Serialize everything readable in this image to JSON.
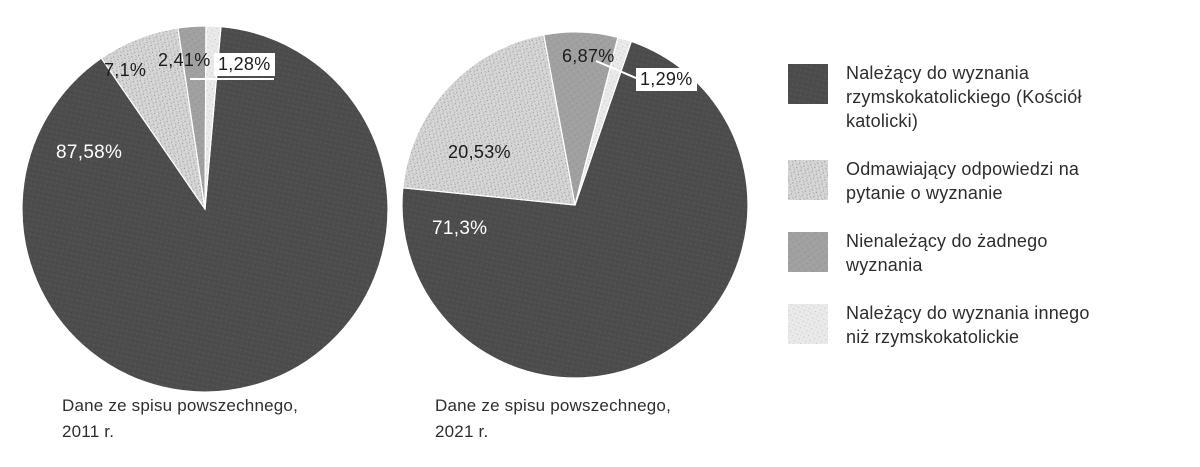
{
  "page": {
    "background": "#ffffff"
  },
  "legend": {
    "position": "right",
    "items": [
      {
        "label": "Należący do wyznania rzymskokatolickiego (Kościół katolicki)",
        "color": "#4d4d4d"
      },
      {
        "label": "Odmawiający odpowiedzi na pytanie o wyznanie",
        "color": "#d6d6d6"
      },
      {
        "label": "Nienależący do żadnego wyznania",
        "color": "#a0a0a0"
      },
      {
        "label": "Należący do wyznania innego niż rzymskokatolickie",
        "color": "#eaeaea"
      }
    ]
  },
  "chart_data": [
    {
      "type": "pie",
      "caption": "Dane ze spisu powszechnego, 2011 r.",
      "categories": [
        "Należący do wyznania rzymskokatolickiego (Kościół katolicki)",
        "Odmawiający odpowiedzi na pytanie o wyznanie",
        "Nienależący do żadnego wyznania",
        "Należący do wyznania innego niż rzymskokatolickie"
      ],
      "values": [
        87.58,
        7.1,
        2.41,
        1.28
      ],
      "value_labels": [
        "87,58%",
        "7,1%",
        "2,41%",
        "1,28%"
      ],
      "colors": [
        "#4d4d4d",
        "#d6d6d6",
        "#a0a0a0",
        "#eaeaea"
      ]
    },
    {
      "type": "pie",
      "caption": "Dane ze spisu powszechnego, 2021 r.",
      "categories": [
        "Należący do wyznania rzymskokatolickiego (Kościół katolicki)",
        "Odmawiający odpowiedzi na pytanie o wyznanie",
        "Nienależący do żadnego wyznania",
        "Należący do wyznania innego niż rzymskokatolickie"
      ],
      "values": [
        71.3,
        20.53,
        6.87,
        1.29
      ],
      "value_labels": [
        "71,3%",
        "20,53%",
        "6,87%",
        "1,29%"
      ],
      "colors": [
        "#4d4d4d",
        "#d6d6d6",
        "#a0a0a0",
        "#eaeaea"
      ]
    }
  ]
}
